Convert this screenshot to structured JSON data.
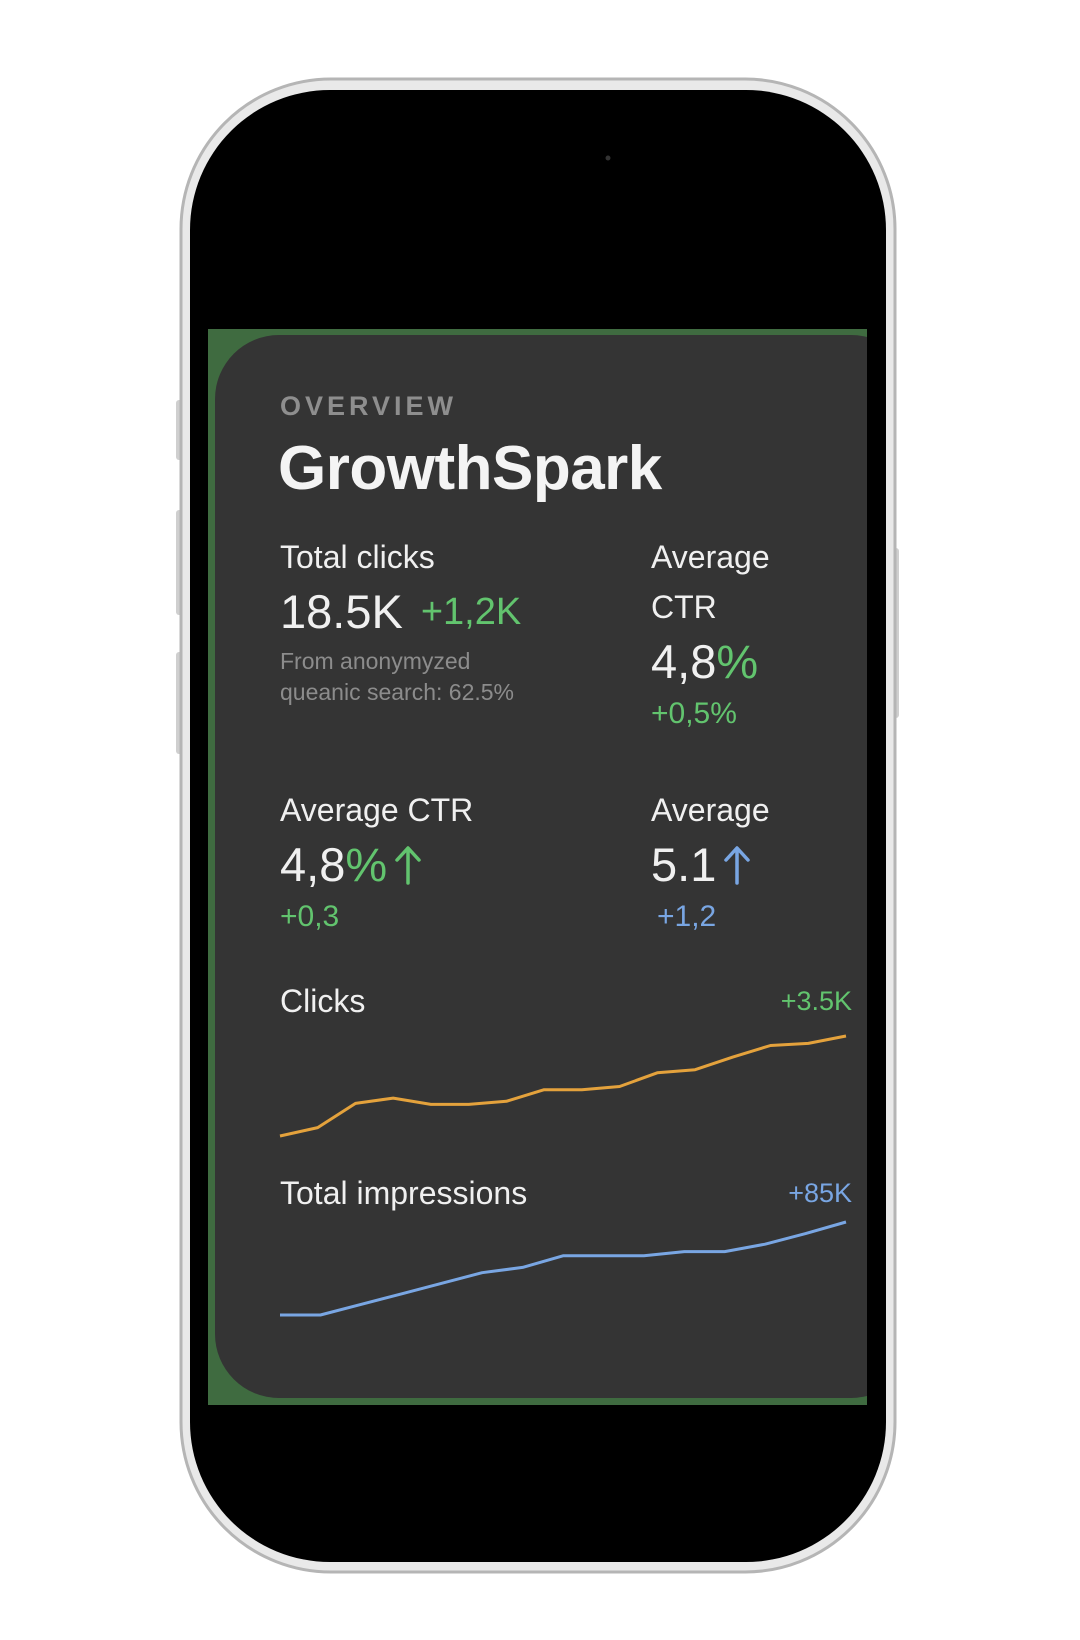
{
  "header": {
    "eyebrow": "OVERVIEW",
    "title": "GrowthSpark"
  },
  "metrics": [
    {
      "label": "Total clicks",
      "value": "18.5K",
      "change": "+1,2K",
      "note": "From anonymyzed queanic search: 62.5%"
    },
    {
      "label": "Average CTR",
      "value": "4,8",
      "unit": "%",
      "change": "+0,5%"
    },
    {
      "label": "Average CTR",
      "value": "4,8",
      "unit": "%",
      "change": "+0,3"
    },
    {
      "label": "Average",
      "value": "5.1",
      "change": "+1,2"
    }
  ],
  "sparklines": [
    {
      "name": "Clicks",
      "change": "+3.5K",
      "color": "#e4a23c",
      "change_color": "#62c46e",
      "values": [
        0,
        8,
        31,
        36,
        30,
        30,
        33,
        44,
        44,
        47,
        60,
        63,
        75,
        86,
        88,
        95
      ]
    },
    {
      "name": "Total impressions",
      "change": "+85K",
      "color": "#79a6e3",
      "change_color": "#79a6e3",
      "values": [
        0,
        0,
        10,
        20,
        30,
        40,
        45,
        56,
        56,
        56,
        60,
        60,
        67,
        77,
        88
      ]
    }
  ]
}
